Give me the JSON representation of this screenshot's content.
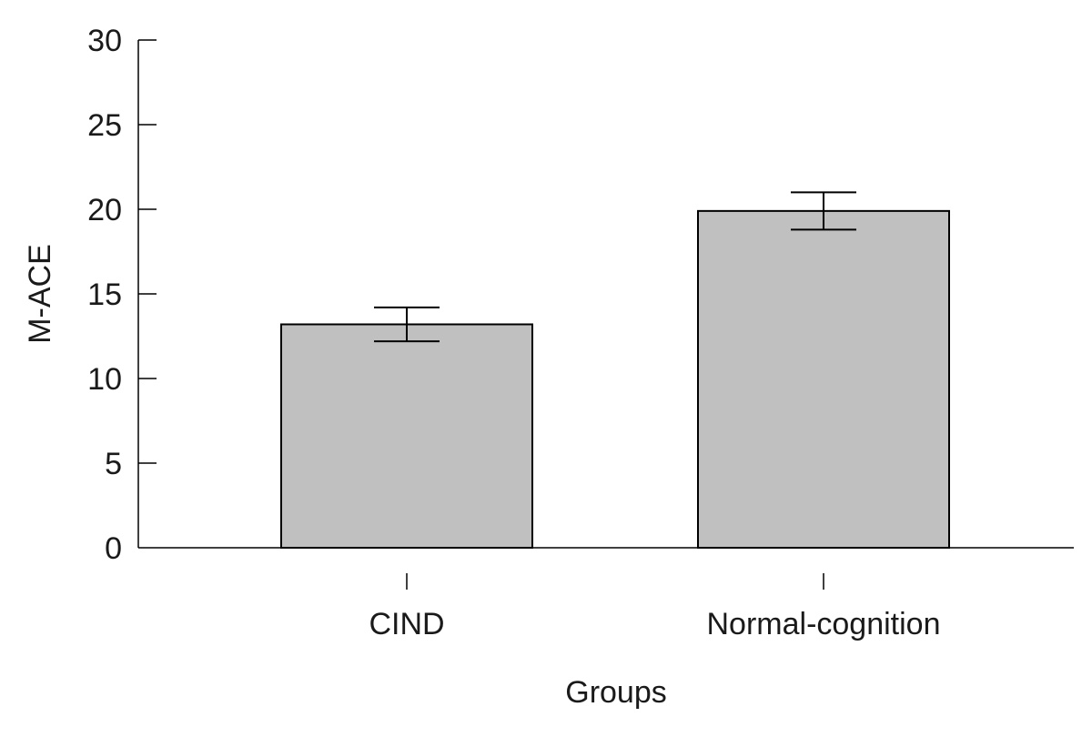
{
  "chart_data": {
    "type": "bar",
    "title": "",
    "xlabel": "Groups",
    "ylabel": "M-ACE",
    "categories": [
      "CIND",
      "Normal-cognition"
    ],
    "values": [
      13.2,
      19.9
    ],
    "error_low": [
      12.2,
      18.8
    ],
    "error_high": [
      14.2,
      21.0
    ],
    "ylim": [
      0,
      30
    ],
    "yticks": [
      0,
      5,
      10,
      15,
      20,
      25,
      30
    ],
    "grid": false,
    "legend": "none",
    "colors": {
      "bar_fill": "#c0c0c0",
      "bar_stroke": "#000000",
      "axis": "#000000",
      "text": "#1a1a1a"
    }
  }
}
